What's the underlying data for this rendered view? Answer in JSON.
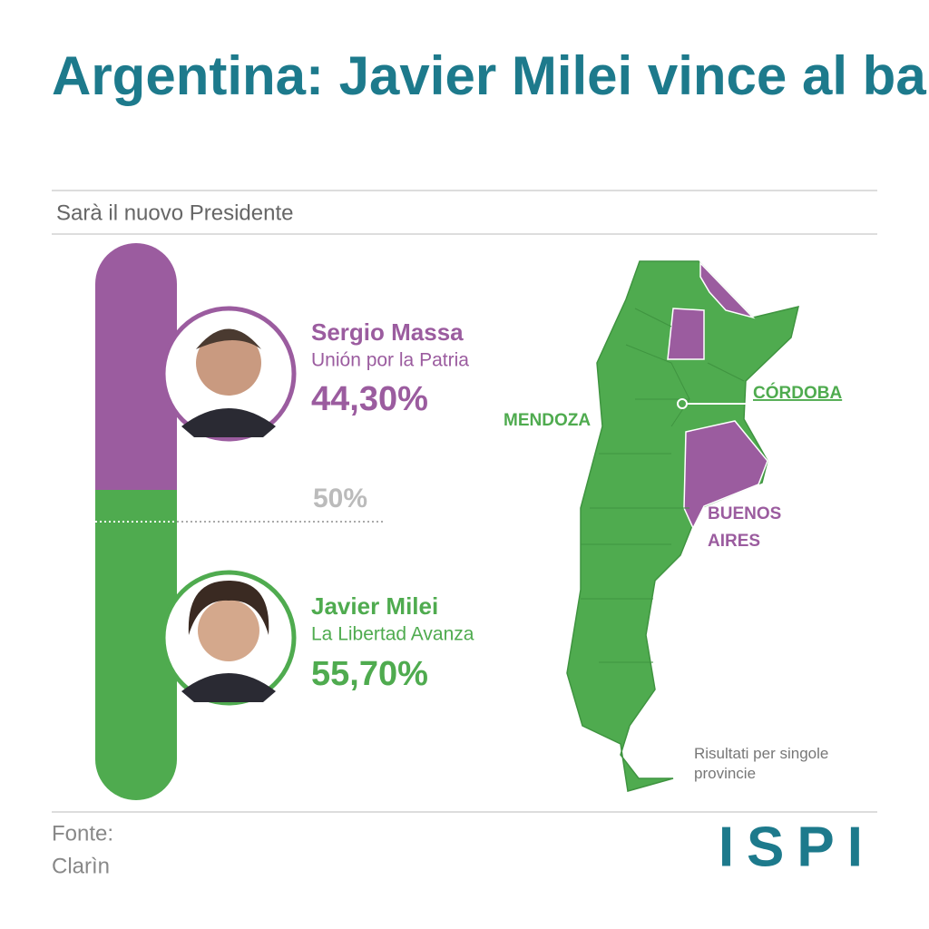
{
  "chart_data": {
    "type": "bar",
    "stacked": true,
    "title": "Argentina: Javier Milei vince al ballottaggio",
    "subtitle": "Sarà il nuovo Presidente",
    "ylim": [
      0,
      100
    ],
    "series": [
      {
        "name": "Sergio Massa",
        "party": "Unión por la Patria",
        "color": "#9b5c9f",
        "values": [
          44.3
        ],
        "value_labels": [
          "44,30%"
        ]
      },
      {
        "name": "Javier Milei",
        "party": "La Libertad Avanza",
        "color": "#4fab4f",
        "values": [
          55.7
        ],
        "value_labels": [
          "55,70%"
        ]
      }
    ],
    "reference": {
      "value": 50,
      "label": "50%"
    }
  },
  "map": {
    "labels": [
      "MENDOZA",
      "CÓRDOBA",
      "BUENOS AIRES"
    ],
    "note": "Risultati per singole provincie"
  },
  "source": {
    "label": "Fonte:",
    "name": "Clarìn"
  },
  "logo": "ISPI"
}
